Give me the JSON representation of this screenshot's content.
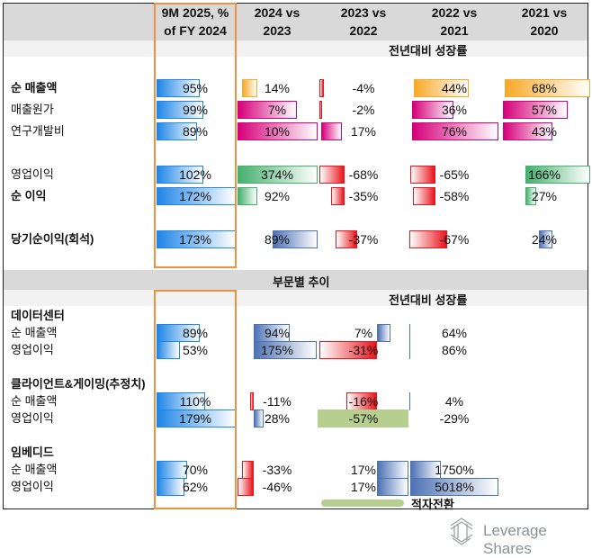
{
  "header": {
    "columns": [
      {
        "line1": "9M 2025, %",
        "line2": "of FY 2024"
      },
      {
        "line1": "2024 vs",
        "line2": "2023"
      },
      {
        "line1": "2023 vs",
        "line2": "2022"
      },
      {
        "line1": "2022 vs",
        "line2": "2021"
      },
      {
        "line1": "2021 vs",
        "line2": "2020"
      }
    ],
    "growth_label": "전년대비 성장률",
    "segment_title": "부문별 추이",
    "segment_growth_label": "전년대비 성장률"
  },
  "colors": {
    "blue": "#1f86e6",
    "orange": "#f7a928",
    "magenta": "#d5007a",
    "green": "#45b06d",
    "red": "#e8151c",
    "slate": "#4d72b4",
    "olive": "#b7cf8e",
    "highlight": "#f0913f"
  },
  "chart_data": {
    "type": "table",
    "sections": [
      {
        "title": "",
        "rows": [
          {
            "label": "순 매출액",
            "bold": true,
            "cells": [
              {
                "v": "95%",
                "c": "blue"
              },
              {
                "v": "14%",
                "c": "orange"
              },
              {
                "v": "-4%",
                "c": "red"
              },
              {
                "v": "44%",
                "c": "orange"
              },
              {
                "v": "68%",
                "c": "orange"
              }
            ]
          },
          {
            "label": "매출원가",
            "bold": false,
            "cells": [
              {
                "v": "99%",
                "c": "blue"
              },
              {
                "v": "7%",
                "c": "magenta"
              },
              {
                "v": "-2%",
                "c": "red"
              },
              {
                "v": "36%",
                "c": "magenta"
              },
              {
                "v": "57%",
                "c": "magenta"
              }
            ]
          },
          {
            "label": "연구개발비",
            "bold": false,
            "cells": [
              {
                "v": "89%",
                "c": "blue"
              },
              {
                "v": "10%",
                "c": "magenta"
              },
              {
                "v": "17%",
                "c": "magenta"
              },
              {
                "v": "76%",
                "c": "magenta"
              },
              {
                "v": "43%",
                "c": "magenta"
              }
            ]
          },
          {
            "label": "영업이익",
            "bold": false,
            "cells": [
              {
                "v": "102%",
                "c": "blue"
              },
              {
                "v": "374%",
                "c": "green"
              },
              {
                "v": "-68%",
                "c": "red"
              },
              {
                "v": "-65%",
                "c": "red"
              },
              {
                "v": "166%",
                "c": "green"
              }
            ]
          },
          {
            "label": "순 이익",
            "bold": true,
            "cells": [
              {
                "v": "172%",
                "c": "blue"
              },
              {
                "v": "92%",
                "c": "green"
              },
              {
                "v": "-35%",
                "c": "red"
              },
              {
                "v": "-58%",
                "c": "red"
              },
              {
                "v": "27%",
                "c": "green"
              }
            ]
          },
          {
            "label": "당기순이익(회석)",
            "bold": true,
            "cells": [
              {
                "v": "173%",
                "c": "blue"
              },
              {
                "v": "89%",
                "c": "slate"
              },
              {
                "v": "-37%",
                "c": "red"
              },
              {
                "v": "-67%",
                "c": "red"
              },
              {
                "v": "24%",
                "c": "slate"
              }
            ]
          }
        ]
      },
      {
        "title": "데이터센터",
        "rows": [
          {
            "label": "순 매출액",
            "bold": false,
            "cells": [
              {
                "v": "89%",
                "c": "blue"
              },
              {
                "v": "94%",
                "c": "slate"
              },
              {
                "v": "7%",
                "c": "slate"
              },
              {
                "v": "64%",
                "c": "slate"
              }
            ]
          },
          {
            "label": "영업이익",
            "bold": false,
            "cells": [
              {
                "v": "53%",
                "c": "blue"
              },
              {
                "v": "175%",
                "c": "slate"
              },
              {
                "v": "-31%",
                "c": "red"
              },
              {
                "v": "86%",
                "c": "slate"
              }
            ]
          }
        ]
      },
      {
        "title": "클라이언트&게이밍(추정치)",
        "rows": [
          {
            "label": "순 매출액",
            "bold": false,
            "cells": [
              {
                "v": "110%",
                "c": "blue"
              },
              {
                "v": "-11%",
                "c": "red"
              },
              {
                "v": "-16%",
                "c": "red"
              },
              {
                "v": "4%",
                "c": "slate"
              }
            ]
          },
          {
            "label": "영업이익",
            "bold": false,
            "cells": [
              {
                "v": "179%",
                "c": "blue"
              },
              {
                "v": "28%",
                "c": "slate"
              },
              {
                "v": "-57%",
                "c": "olive"
              },
              {
                "v": "-29%",
                "c": "slate"
              }
            ]
          }
        ]
      },
      {
        "title": "임베디드",
        "rows": [
          {
            "label": "순 매출액",
            "bold": false,
            "cells": [
              {
                "v": "70%",
                "c": "blue"
              },
              {
                "v": "-33%",
                "c": "red"
              },
              {
                "v": "17%",
                "c": "slate"
              },
              {
                "v": "1750%",
                "c": "slate"
              }
            ]
          },
          {
            "label": "영업이익",
            "bold": false,
            "cells": [
              {
                "v": "62%",
                "c": "blue"
              },
              {
                "v": "-46%",
                "c": "red"
              },
              {
                "v": "17%",
                "c": "slate"
              },
              {
                "v": "5018%",
                "c": "slate"
              }
            ]
          }
        ]
      }
    ],
    "legend": [
      {
        "label": "적자전환",
        "color": "olive"
      }
    ]
  },
  "brand": {
    "name": "Leverage Shares"
  }
}
